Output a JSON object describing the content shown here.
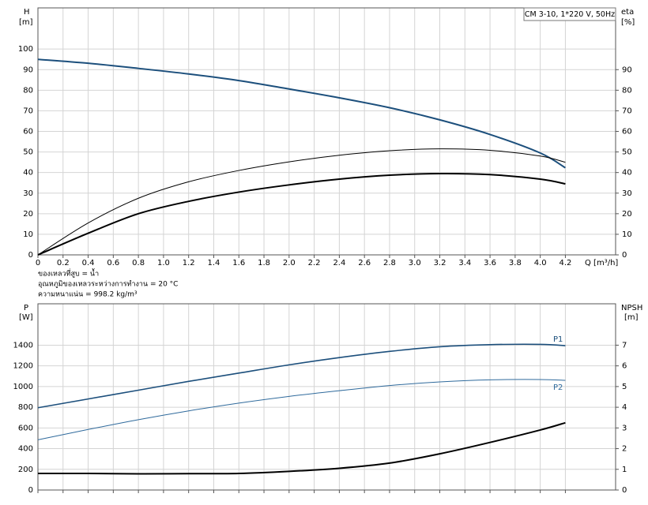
{
  "chart_data": [
    {
      "type": "line",
      "annotation": "CM 3-10, 1*220 V, 50Hz",
      "y_label": "H",
      "y_unit": "[m]",
      "y2_label": "eta",
      "y2_unit": "[%]",
      "x_label": "Q [m³/h]",
      "notes": [
        "ของเหลวที่สูบ = น้ำ",
        "อุณหภูมิของเหลวระหว่างการทำงาน = 20 °C",
        "ความหนาแน่น = 998.2 kg/m³"
      ],
      "x": [
        0,
        0.4,
        0.8,
        1.2,
        1.6,
        2.0,
        2.4,
        2.8,
        3.2,
        3.6,
        4.0,
        4.2
      ],
      "xlim": [
        0,
        4.6
      ],
      "xticks": [
        0,
        0.2,
        0.4,
        0.6,
        0.8,
        {
          "value": 1,
          "label": "1.0"
        },
        1.2,
        1.4,
        1.6,
        1.8,
        {
          "value": 2,
          "label": "2.0"
        },
        2.2,
        2.4,
        2.6,
        2.8,
        {
          "value": 3,
          "label": "3.0"
        },
        3.2,
        3.4,
        3.6,
        3.8,
        {
          "value": 4,
          "label": "4.0"
        },
        4.2
      ],
      "ylim": [
        0,
        120
      ],
      "yticks": [
        0,
        10,
        20,
        30,
        40,
        50,
        60,
        70,
        80,
        90,
        100
      ],
      "y2lim": [
        0,
        120
      ],
      "y2ticks": [
        0,
        10,
        20,
        30,
        40,
        50,
        60,
        70,
        80,
        90
      ],
      "grid": true,
      "series": [
        {
          "color": "#1c4f7c",
          "width": 2,
          "values": [
            95,
            93.1,
            90.6,
            87.9,
            84.7,
            80.6,
            76.3,
            71.5,
            65.6,
            58.5,
            49.5,
            42.3
          ]
        },
        {
          "color": "#000000",
          "width": 1,
          "axis": "y2",
          "values": [
            0,
            15.5,
            27.5,
            35.5,
            41,
            45.2,
            48.4,
            50.6,
            51.5,
            50.8,
            48,
            45
          ]
        },
        {
          "color": "#000000",
          "width": 2,
          "axis": "y2",
          "values": [
            0,
            10.5,
            20,
            26,
            30.5,
            34,
            36.8,
            38.7,
            39.5,
            39,
            36.8,
            34.5
          ]
        }
      ]
    },
    {
      "type": "line",
      "y_label": "P",
      "y_unit": "[W]",
      "y2_label": "NPSH",
      "y2_unit": "[m]",
      "x": [
        0,
        0.4,
        0.8,
        1.2,
        1.6,
        2.0,
        2.4,
        2.8,
        3.2,
        3.6,
        4.0,
        4.2
      ],
      "xlim": [
        0,
        4.6
      ],
      "xticks": [
        0,
        0.2,
        0.4,
        0.6,
        0.8,
        1,
        1.2,
        1.4,
        1.6,
        1.8,
        2,
        2.2,
        2.4,
        2.6,
        2.8,
        3,
        3.2,
        3.4,
        3.6,
        3.8,
        4,
        4.2
      ],
      "ylim": [
        0,
        1800
      ],
      "yticks": [
        0,
        200,
        400,
        600,
        800,
        1000,
        1200,
        1400
      ],
      "y2lim": [
        0,
        9
      ],
      "y2ticks": [
        0,
        1,
        2,
        3,
        4,
        5,
        6,
        7
      ],
      "grid": true,
      "series": [
        {
          "name": "P1",
          "label_side": "above",
          "color": "#1c4f7c",
          "width": 1.6,
          "values": [
            795,
            880,
            965,
            1050,
            1130,
            1210,
            1280,
            1340,
            1385,
            1405,
            1408,
            1395
          ]
        },
        {
          "name": "P2",
          "label_side": "below",
          "color": "#2f6a9c",
          "width": 1,
          "values": [
            485,
            585,
            680,
            765,
            840,
            905,
            960,
            1010,
            1045,
            1065,
            1068,
            1060
          ]
        },
        {
          "color": "#000000",
          "width": 2,
          "axis": "y2",
          "values": [
            0.8,
            0.8,
            0.78,
            0.79,
            0.8,
            0.9,
            1.05,
            1.3,
            1.75,
            2.3,
            2.9,
            3.25
          ]
        }
      ]
    }
  ]
}
